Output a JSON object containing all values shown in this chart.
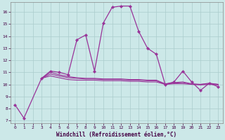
{
  "xlabel": "Windchill (Refroidissement éolien,°C)",
  "bg_color": "#cce8e8",
  "grid_color": "#aacccc",
  "line_color": "#993399",
  "xlim": [
    -0.5,
    23.5
  ],
  "ylim": [
    6.8,
    16.8
  ],
  "yticks": [
    7,
    8,
    9,
    10,
    11,
    12,
    13,
    14,
    15,
    16
  ],
  "xticks": [
    0,
    1,
    2,
    3,
    4,
    5,
    6,
    7,
    8,
    9,
    10,
    11,
    12,
    13,
    14,
    15,
    16,
    17,
    18,
    19,
    20,
    21,
    22,
    23
  ],
  "series": [
    {
      "x": [
        0,
        1,
        3,
        4,
        5,
        6,
        7,
        8,
        9,
        10,
        11,
        12,
        13,
        14,
        15,
        16,
        17,
        18,
        19,
        20,
        21,
        22,
        23
      ],
      "y": [
        8.3,
        7.2,
        10.5,
        11.1,
        11.0,
        10.8,
        13.7,
        14.1,
        11.1,
        15.1,
        16.4,
        16.5,
        16.5,
        14.4,
        13.0,
        12.5,
        10.0,
        10.2,
        11.1,
        10.2,
        9.5,
        10.1,
        9.8
      ],
      "marker": true
    },
    {
      "x": [
        3,
        4,
        5,
        6,
        7,
        8,
        9,
        10,
        11,
        12,
        13,
        14,
        15,
        16,
        17,
        18,
        19,
        20,
        21,
        22,
        23
      ],
      "y": [
        10.5,
        10.7,
        10.55,
        10.4,
        10.35,
        10.35,
        10.35,
        10.3,
        10.3,
        10.3,
        10.25,
        10.25,
        10.2,
        10.2,
        10.0,
        10.05,
        10.05,
        10.0,
        9.95,
        10.0,
        9.95
      ],
      "marker": false
    },
    {
      "x": [
        3,
        4,
        5,
        6,
        7,
        8,
        9,
        10,
        11,
        12,
        13,
        14,
        15,
        16,
        17,
        18,
        19,
        20,
        21,
        22,
        23
      ],
      "y": [
        10.5,
        10.85,
        10.7,
        10.55,
        10.5,
        10.45,
        10.45,
        10.4,
        10.4,
        10.4,
        10.35,
        10.35,
        10.3,
        10.3,
        10.0,
        10.1,
        10.15,
        10.0,
        10.0,
        10.05,
        10.0
      ],
      "marker": false
    },
    {
      "x": [
        3,
        4,
        5,
        6,
        7,
        8,
        9,
        10,
        11,
        12,
        13,
        14,
        15,
        16,
        17,
        18,
        19,
        20,
        21,
        22,
        23
      ],
      "y": [
        10.5,
        11.0,
        10.8,
        10.65,
        10.55,
        10.5,
        10.5,
        10.45,
        10.45,
        10.45,
        10.4,
        10.4,
        10.35,
        10.35,
        10.05,
        10.15,
        10.2,
        10.05,
        10.0,
        10.1,
        10.0
      ],
      "marker": false
    }
  ]
}
